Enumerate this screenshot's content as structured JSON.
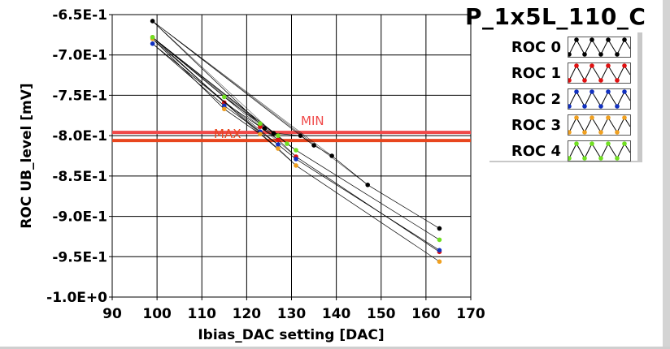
{
  "chart_data": {
    "type": "scatter",
    "title": "P_1x5L_110_C",
    "xlabel": "Ibias_DAC setting [DAC]",
    "ylabel": "ROC UB_level [mV]",
    "xlim": [
      90,
      170
    ],
    "ylim": [
      -1.0,
      -0.65
    ],
    "xticks": [
      "90",
      "100",
      "110",
      "120",
      "130",
      "140",
      "150",
      "160",
      "170"
    ],
    "yticks": [
      "-6.5E-1",
      "-7.0E-1",
      "-7.5E-1",
      "-8.0E-1",
      "-8.5E-1",
      "-9.0E-1",
      "-9.5E-1",
      "-1.0E+0"
    ],
    "ytick_values": [
      -0.65,
      -0.7,
      -0.75,
      -0.8,
      -0.85,
      -0.9,
      -0.95,
      -1.0
    ],
    "xtick_values": [
      90,
      100,
      110,
      120,
      130,
      140,
      150,
      160,
      170
    ],
    "grid": true,
    "legend_position": "right",
    "series": [
      {
        "name": "ROC 0",
        "color": "#000000",
        "x": [
          99,
          124,
          126,
          132,
          135,
          139,
          147,
          163
        ],
        "y": [
          -0.658,
          -0.791,
          -0.797,
          -0.8,
          -0.812,
          -0.825,
          -0.861,
          -0.915
        ]
      },
      {
        "name": "ROC 1",
        "color": "#e01010",
        "x": [
          99,
          115,
          123,
          127,
          131,
          163
        ],
        "y": [
          -0.678,
          -0.759,
          -0.789,
          -0.805,
          -0.826,
          -0.944
        ]
      },
      {
        "name": "ROC 2",
        "color": "#1030c0",
        "x": [
          99,
          115,
          123,
          127,
          131,
          163
        ],
        "y": [
          -0.686,
          -0.763,
          -0.795,
          -0.811,
          -0.829,
          -0.942
        ]
      },
      {
        "name": "ROC 3",
        "color": "#f0a020",
        "x": [
          99,
          115,
          123,
          127,
          131,
          163
        ],
        "y": [
          -0.68,
          -0.767,
          -0.798,
          -0.816,
          -0.837,
          -0.956
        ]
      },
      {
        "name": "ROC 4",
        "color": "#70e020",
        "x": [
          99,
          115,
          123,
          127,
          129,
          131,
          163
        ],
        "y": [
          -0.678,
          -0.752,
          -0.785,
          -0.8,
          -0.81,
          -0.818,
          -0.929
        ]
      }
    ],
    "limits": [
      {
        "name": "MIN",
        "value": -0.796,
        "color": "#f04848"
      },
      {
        "name": "MAX",
        "value": -0.806,
        "color": "#e8461e"
      }
    ]
  }
}
